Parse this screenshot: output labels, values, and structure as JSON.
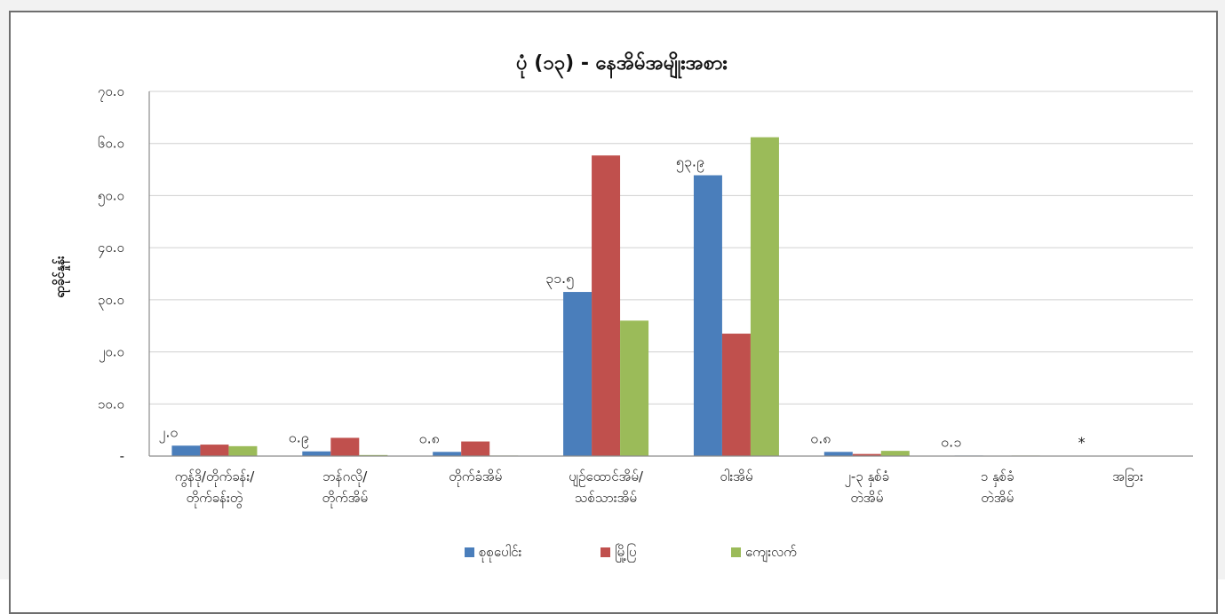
{
  "chart_data": {
    "type": "bar",
    "title": "ပုံ (၁၃) - နေအိမ်အမျိုးအစား",
    "xlabel": "",
    "ylabel": "ရာခိုင်နှုန်း",
    "ylim": [
      0,
      70
    ],
    "yticks": [
      "-",
      "၁၀.၀",
      "၂၀.၀",
      "၃၀.၀",
      "၄၀.၀",
      "၅၀.၀",
      "၆၀.၀",
      "၇၀.၀"
    ],
    "ytick_values": [
      0,
      10,
      20,
      30,
      40,
      50,
      60,
      70
    ],
    "grid": true,
    "legend_position": "bottom",
    "categories": [
      [
        "ကွန်ဒို/တိုက်ခန်း/",
        "တိုက်ခန်းတွဲ"
      ],
      [
        "ဘန်ဂလို/",
        "တိုက်အိမ်"
      ],
      [
        "တိုက်ခံအိမ်"
      ],
      [
        "ပျဉ်ထောင်အိမ်/",
        "သစ်သားအိမ်"
      ],
      [
        "ဝါးအိမ်"
      ],
      [
        "၂-၃ နှစ်ခံ",
        "တဲအိမ်"
      ],
      [
        "၁ နှစ်ခံ",
        "တဲအိမ်"
      ],
      [
        "အခြား"
      ]
    ],
    "series": [
      {
        "name": "စုစုပေါင်း",
        "color": "#4a7ebb",
        "values": [
          2.0,
          0.9,
          0.8,
          31.5,
          53.9,
          0.8,
          0.1,
          0.0
        ]
      },
      {
        "name": "မြို့ပြ",
        "color": "#c0504d",
        "values": [
          2.2,
          3.5,
          2.8,
          57.7,
          23.5,
          0.4,
          0.0,
          0.0
        ]
      },
      {
        "name": "ကျေးလက်",
        "color": "#9bbb59",
        "values": [
          1.9,
          0.2,
          0.1,
          26.0,
          61.2,
          1.0,
          0.1,
          0.0
        ]
      }
    ],
    "data_labels": [
      "၂.၀",
      "၀.၉",
      "၀.၈",
      "၃၁.၅",
      "၅၃.၉",
      "၀.၈",
      "၀.၁",
      "*"
    ]
  }
}
